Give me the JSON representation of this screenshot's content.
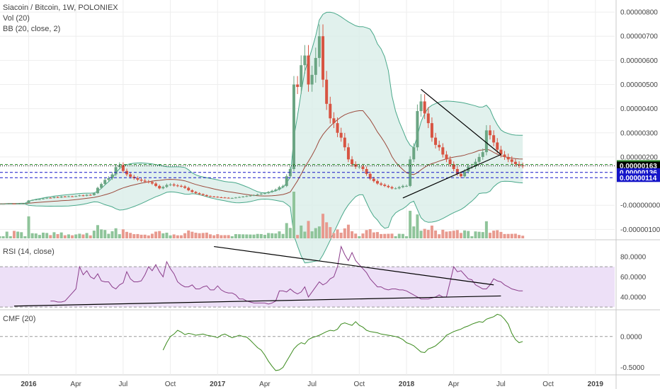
{
  "legend": {
    "title": "Siacoin / Bitcoin, 1W, POLONIEX",
    "vol": "Vol (20)",
    "bb": "BB (20, close, 2)",
    "rsi": "RSI (14, close)",
    "cmf": "CMF (20)"
  },
  "colors": {
    "up": "#6ba583",
    "down": "#d75442",
    "bb_band": "#49a88a",
    "bb_fill": "#d9eee8",
    "bb_basis": "#9b4a3c",
    "rsi_line": "#8b3d8b",
    "rsi_fill": "#ede0f7",
    "cmf_line": "#3a8a1c",
    "vol_up": "#8fc49a",
    "vol_down": "#e89a8f",
    "green_tag": "#2e8b2e",
    "blue_tag": "#1414c8",
    "black_tag": "#000000"
  },
  "chart_data": [
    {
      "name": "main",
      "type": "candlestick",
      "price_axis": [
        "0.00000800",
        "0.00000700",
        "0.00000600",
        "0.00000500",
        "0.00000400",
        "0.00000300",
        "0.00000200",
        "-0.00000000",
        "-0.00000100"
      ],
      "price_axis_values": [
        8e-06,
        7e-06,
        6e-06,
        5e-06,
        4e-06,
        3e-06,
        2e-06,
        0.0,
        -1e-06
      ],
      "ylim": [
        -1.4e-06,
        8.5e-06
      ],
      "price_tags": [
        {
          "label": "0.00000169",
          "value": 1.69e-06,
          "style": "green"
        },
        {
          "label": "0.00000163",
          "value": 1.63e-06,
          "style": "black"
        },
        {
          "label": "0.00000136",
          "value": 1.36e-06,
          "style": "blue"
        },
        {
          "label": "0.00000114",
          "value": 1.14e-06,
          "style": "blue"
        }
      ],
      "date_axis": [
        "2016",
        "Apr",
        "Jul",
        "Oct",
        "2017",
        "Apr",
        "Jul",
        "Oct",
        "2018",
        "Apr",
        "Jul",
        "Oct",
        "2019"
      ],
      "date_axis_positions": [
        0,
        13,
        26,
        39,
        52,
        65,
        78,
        91,
        104,
        117,
        130,
        143,
        156
      ],
      "first_week": -8,
      "close": [
        6e-08,
        6e-08,
        7e-08,
        7e-08,
        6e-08,
        7e-08,
        8e-08,
        8e-08,
        2e-07,
        2.2e-07,
        2.4e-07,
        2.5e-07,
        2.8e-07,
        3.1e-07,
        3e-07,
        3.4e-07,
        3.2e-07,
        3.6e-07,
        3.5e-07,
        3.7e-07,
        3.6e-07,
        3.8e-07,
        4.1e-07,
        3.9e-07,
        4.3e-07,
        4.2e-07,
        5e-07,
        7.2e-07,
        8.8e-07,
        1.05e-06,
        1.12e-06,
        1.28e-06,
        1.58e-06,
        1.66e-06,
        1.42e-06,
        1.28e-06,
        1.18e-06,
        1.12e-06,
        1.06e-06,
        1.02e-06,
        9.8e-07,
        9.6e-07,
        9e-07,
        8e-07,
        7e-07,
        7.6e-07,
        8.4e-07,
        8.6e-07,
        8.2e-07,
        8e-07,
        7.8e-07,
        7.2e-07,
        6.2e-07,
        5.5e-07,
        5e-07,
        4.6e-07,
        4.2e-07,
        3.8e-07,
        3.6e-07,
        3.5e-07,
        3.3e-07,
        3.2e-07,
        3.1e-07,
        3e-07,
        3e-07,
        3.2e-07,
        3.4e-07,
        3.6e-07,
        3.8e-07,
        4e-07,
        4.2e-07,
        4.5e-07,
        4.8e-07,
        5e-07,
        5.5e-07,
        6e-07,
        6.5e-07,
        7.5e-07,
        8e-07,
        1.2e-06,
        1.5e-06,
        5e-06,
        4.9e-06,
        5.8e-06,
        6.2e-06,
        5e-06,
        5.4e-06,
        6.1e-06,
        7e-06,
        5.2e-06,
        4.2e-06,
        3.6e-06,
        3.4e-06,
        3e-06,
        2.8e-06,
        2.4e-06,
        1.9e-06,
        1.7e-06,
        1.6e-06,
        1.6e-06,
        1.5e-06,
        1.3e-06,
        1.1e-06,
        1e-06,
        9e-07,
        8.5e-07,
        8e-07,
        7.5e-07,
        7e-07,
        7e-07,
        7.5e-07,
        8e-07,
        8e-07,
        1.9e-06,
        2.4e-06,
        3.9e-06,
        4.3e-06,
        3.8e-06,
        3.4e-06,
        2.8e-06,
        2.5e-06,
        2.4e-06,
        2.1e-06,
        1.9e-06,
        1.7e-06,
        1.5e-06,
        1.3e-06,
        1.2e-06,
        1.4e-06,
        1.6e-06,
        1.6e-06,
        1.8e-06,
        2e-06,
        2.2e-06,
        3.1e-06,
        2.9e-06,
        2.6e-06,
        2.3e-06,
        2.1e-06,
        2e-06,
        1.9e-06,
        1.8e-06,
        1.7e-06,
        1.65e-06,
        1.63e-06
      ],
      "open": [
        6e-08,
        6e-08,
        6e-08,
        7e-08,
        7e-08,
        6e-08,
        7e-08,
        8e-08,
        8e-08,
        2e-07,
        2.2e-07,
        2.4e-07,
        2.5e-07,
        2.8e-07,
        3.1e-07,
        3e-07,
        3.4e-07,
        3.2e-07,
        3.6e-07,
        3.5e-07,
        3.7e-07,
        3.6e-07,
        3.8e-07,
        4.1e-07,
        3.9e-07,
        4.3e-07,
        4.2e-07,
        5e-07,
        7.2e-07,
        8.8e-07,
        1.05e-06,
        1.12e-06,
        1.28e-06,
        1.58e-06,
        1.66e-06,
        1.42e-06,
        1.28e-06,
        1.18e-06,
        1.12e-06,
        1.06e-06,
        1.02e-06,
        9.8e-07,
        9.6e-07,
        9e-07,
        8e-07,
        7e-07,
        7.6e-07,
        8.4e-07,
        8.6e-07,
        8.2e-07,
        8e-07,
        7.8e-07,
        7.2e-07,
        6.2e-07,
        5.5e-07,
        5e-07,
        4.6e-07,
        4.2e-07,
        3.8e-07,
        3.6e-07,
        3.5e-07,
        3.3e-07,
        3.2e-07,
        3.1e-07,
        3e-07,
        3e-07,
        3.2e-07,
        3.4e-07,
        3.6e-07,
        3.8e-07,
        4e-07,
        4.2e-07,
        4.5e-07,
        4.8e-07,
        5e-07,
        5.5e-07,
        6e-07,
        6.5e-07,
        7.5e-07,
        8e-07,
        1.2e-06,
        1.5e-06,
        5e-06,
        4.9e-06,
        5.8e-06,
        6.2e-06,
        5e-06,
        5.4e-06,
        6.1e-06,
        7e-06,
        5.2e-06,
        4.2e-06,
        3.6e-06,
        3.4e-06,
        3e-06,
        2.8e-06,
        2.4e-06,
        1.9e-06,
        1.7e-06,
        1.6e-06,
        1.6e-06,
        1.5e-06,
        1.3e-06,
        1.1e-06,
        1e-06,
        9e-07,
        8.5e-07,
        8e-07,
        7.5e-07,
        7e-07,
        7e-07,
        7.5e-07,
        8e-07,
        8e-07,
        1.9e-06,
        2.4e-06,
        3.9e-06,
        4.3e-06,
        3.8e-06,
        3.4e-06,
        2.8e-06,
        2.5e-06,
        2.4e-06,
        2.1e-06,
        1.9e-06,
        1.7e-06,
        1.5e-06,
        1.3e-06,
        1.2e-06,
        1.4e-06,
        1.6e-06,
        1.6e-06,
        1.8e-06,
        2e-06,
        2.2e-06,
        3.1e-06,
        2.9e-06,
        2.6e-06,
        2.3e-06,
        2.1e-06,
        2e-06,
        1.9e-06,
        1.8e-06,
        1.7e-06,
        1.65e-06
      ]
    },
    {
      "name": "rsi",
      "type": "line",
      "axis": [
        "80.0000",
        "60.0000",
        "40.0000"
      ],
      "axis_values": [
        80,
        60,
        40
      ],
      "ylim": [
        28,
        96
      ],
      "band": [
        30,
        70
      ],
      "values": [
        36,
        36,
        35,
        35,
        36,
        40,
        44,
        48,
        70,
        62,
        66,
        60,
        58,
        63,
        56,
        55,
        55,
        50,
        48,
        52,
        54,
        65,
        58,
        55,
        55,
        56,
        62,
        70,
        66,
        72,
        65,
        60,
        75,
        68,
        63,
        55,
        52,
        50,
        50,
        52,
        48,
        48,
        50,
        51,
        47,
        47,
        51,
        47,
        45,
        44,
        44,
        42,
        38,
        38,
        36,
        35,
        34,
        34,
        34,
        34,
        33,
        34,
        36,
        46,
        46,
        45,
        48,
        45,
        43,
        45,
        50,
        40,
        45,
        50,
        55,
        52,
        54,
        58,
        60,
        70,
        90,
        82,
        76,
        84,
        76,
        72,
        68,
        64,
        58,
        54,
        50,
        50,
        48,
        47,
        48,
        48,
        47,
        47,
        46,
        44,
        42,
        40,
        38,
        38,
        38,
        39,
        40,
        42,
        40,
        40,
        55,
        70,
        65,
        66,
        62,
        58,
        57,
        52,
        50,
        48,
        48,
        52,
        58,
        56,
        55,
        52,
        50,
        48,
        47,
        46,
        46
      ]
    },
    {
      "name": "cmf",
      "type": "line",
      "axis": [
        "0.0000",
        "-0.5000"
      ],
      "axis_values": [
        0,
        -0.5
      ],
      "ylim": [
        -0.62,
        0.42
      ],
      "values": [
        -0.22,
        -0.1,
        0.0,
        0.04,
        0.1,
        0.07,
        0.03,
        0.05,
        0.04,
        0.02,
        0.03,
        0.04,
        0.02,
        0.01,
        0.0,
        -0.02,
        0.02,
        0.04,
        0.01,
        -0.02,
        0.0,
        0.02,
        0.0,
        -0.01,
        -0.06,
        -0.12,
        -0.18,
        -0.22,
        -0.3,
        -0.4,
        -0.48,
        -0.55,
        -0.54,
        -0.5,
        -0.4,
        -0.3,
        -0.2,
        -0.14,
        -0.1,
        -0.12,
        -0.05,
        -0.02,
        0.0,
        0.02,
        0.05,
        0.08,
        0.1,
        0.09,
        0.12,
        0.2,
        0.22,
        0.2,
        0.18,
        0.24,
        0.18,
        0.15,
        0.1,
        0.08,
        0.07,
        0.06,
        0.04,
        0.03,
        0.02,
        0.01,
        0.0,
        -0.02,
        -0.05,
        -0.1,
        -0.12,
        -0.15,
        -0.2,
        -0.25,
        -0.26,
        -0.2,
        -0.18,
        -0.15,
        -0.1,
        -0.05,
        0.02,
        0.05,
        0.08,
        0.1,
        0.12,
        0.15,
        0.17,
        0.2,
        0.22,
        0.24,
        0.23,
        0.28,
        0.3,
        0.32,
        0.36,
        0.34,
        0.28,
        0.2,
        0.05,
        -0.05,
        -0.1,
        -0.08
      ]
    }
  ],
  "trendlines": [
    {
      "panel": "main",
      "points": [
        [
          103,
          3e-07
        ],
        [
          130,
          2.1e-06
        ]
      ]
    },
    {
      "panel": "main",
      "points": [
        [
          108,
          4.8e-06
        ],
        [
          130,
          2.1e-06
        ]
      ]
    },
    {
      "panel": "rsi",
      "points": [
        [
          -4,
          31
        ],
        [
          130,
          41
        ]
      ]
    },
    {
      "panel": "rsi",
      "points": [
        [
          51,
          90
        ],
        [
          128,
          52
        ]
      ]
    }
  ]
}
